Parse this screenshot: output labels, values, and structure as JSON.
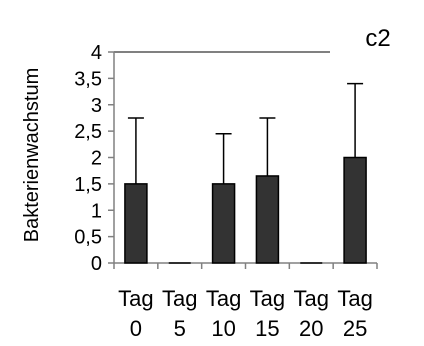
{
  "chart_data": {
    "type": "bar",
    "title": "c2",
    "ylabel": "Bakterienwachstum",
    "xlabel": "",
    "categories": [
      [
        "Tag",
        "0"
      ],
      [
        "Tag",
        "5"
      ],
      [
        "Tag",
        "10"
      ],
      [
        "Tag",
        "15"
      ],
      [
        "Tag",
        "20"
      ],
      [
        "Tag",
        "25"
      ]
    ],
    "values": [
      1.5,
      0,
      1.5,
      1.65,
      0,
      2.0
    ],
    "error_upper": [
      1.25,
      0,
      0.95,
      1.1,
      0,
      1.4
    ],
    "ylim": [
      0,
      4
    ],
    "yticks": [
      "0",
      "0,5",
      "1",
      "1,5",
      "2",
      "2,5",
      "3",
      "3,5",
      "4"
    ],
    "grid": false,
    "bar_color": "#333333",
    "line_color": "#808080"
  }
}
